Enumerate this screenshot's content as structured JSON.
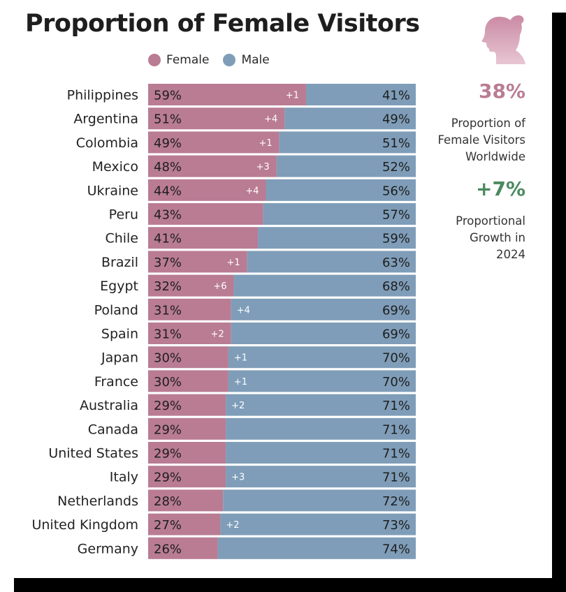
{
  "title": "Proportion of Female Visitors",
  "legend": {
    "female": "Female",
    "male": "Male"
  },
  "colors": {
    "female": "#b97c93",
    "male": "#7f9db8",
    "accent_pink": "#b97c93",
    "accent_green": "#4a8a5f"
  },
  "stats": {
    "worldwide_value": "38%",
    "worldwide_label": "Proportion of Female Visitors Worldwide",
    "growth_value": "+7%",
    "growth_label": "Proportional Growth in 2024"
  },
  "chart_data": {
    "type": "bar",
    "orientation": "horizontal",
    "stacked": true,
    "title": "Proportion of Female Visitors",
    "categories": [
      "Philippines",
      "Argentina",
      "Colombia",
      "Mexico",
      "Ukraine",
      "Peru",
      "Chile",
      "Brazil",
      "Egypt",
      "Poland",
      "Spain",
      "Japan",
      "France",
      "Australia",
      "Canada",
      "United States",
      "Italy",
      "Netherlands",
      "United Kingdom",
      "Germany"
    ],
    "series": [
      {
        "name": "Female",
        "values": [
          59,
          51,
          49,
          48,
          44,
          43,
          41,
          37,
          32,
          31,
          31,
          30,
          30,
          29,
          29,
          29,
          29,
          28,
          27,
          26
        ]
      },
      {
        "name": "Male",
        "values": [
          41,
          49,
          51,
          52,
          56,
          57,
          59,
          63,
          68,
          69,
          69,
          70,
          70,
          71,
          71,
          71,
          71,
          72,
          73,
          74
        ]
      }
    ],
    "growth_labels": [
      "+1",
      "+4",
      "+1",
      "+3",
      "+4",
      "",
      "",
      "+1",
      "+6",
      "+4",
      "+2",
      "+1",
      "+1",
      "+2",
      "",
      "",
      "+3",
      "",
      "+2",
      ""
    ],
    "value_suffix": "%",
    "xlim": [
      0,
      100
    ],
    "legend_position": "top"
  }
}
